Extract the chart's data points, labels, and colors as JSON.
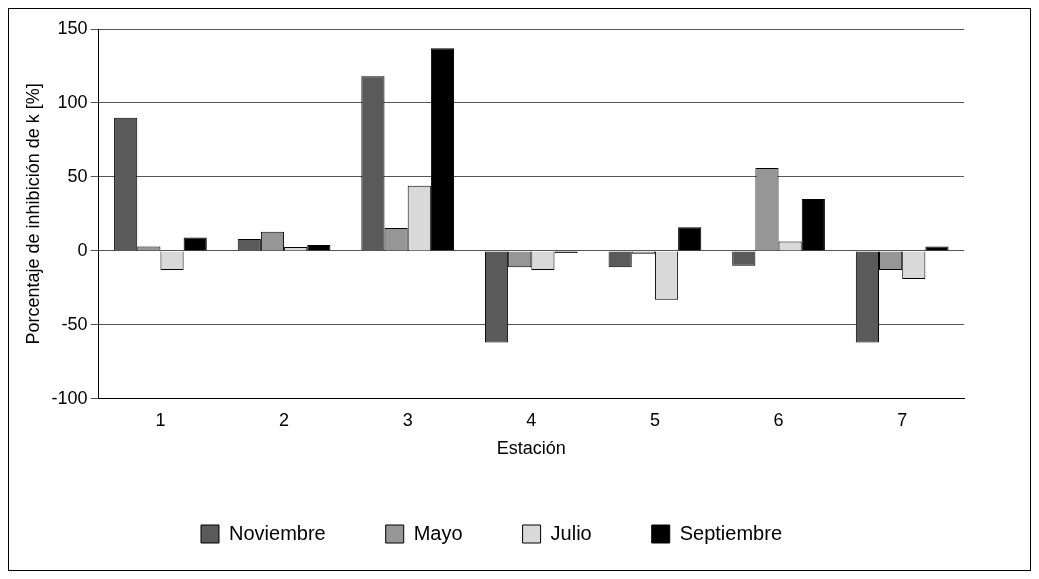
{
  "chart_data": {
    "type": "bar",
    "xlabel": "Estación",
    "ylabel": "Porcentaje de inhibición de k [%]",
    "categories": [
      "1",
      "2",
      "3",
      "4",
      "5",
      "6",
      "7"
    ],
    "series": [
      {
        "name": "Noviembre",
        "color": "#5a5a5a",
        "values": [
          90,
          8,
          118,
          -62,
          -11,
          -10,
          -62
        ]
      },
      {
        "name": "Mayo",
        "color": "#969696",
        "values": [
          3,
          13,
          15.5,
          -11,
          -2,
          56,
          -13
        ]
      },
      {
        "name": "Julio",
        "color": "#d9d9d9",
        "values": [
          -13,
          2.6,
          44,
          -13,
          -33,
          6.4,
          -19
        ]
      },
      {
        "name": "Septiembre",
        "color": "#000000",
        "values": [
          9,
          4,
          137,
          -1.5,
          16,
          35,
          3
        ]
      }
    ],
    "ylim": [
      -100,
      150
    ],
    "yticks": [
      -100,
      -50,
      0,
      50,
      100,
      150
    ],
    "grid": "y",
    "legend": "bottom"
  }
}
